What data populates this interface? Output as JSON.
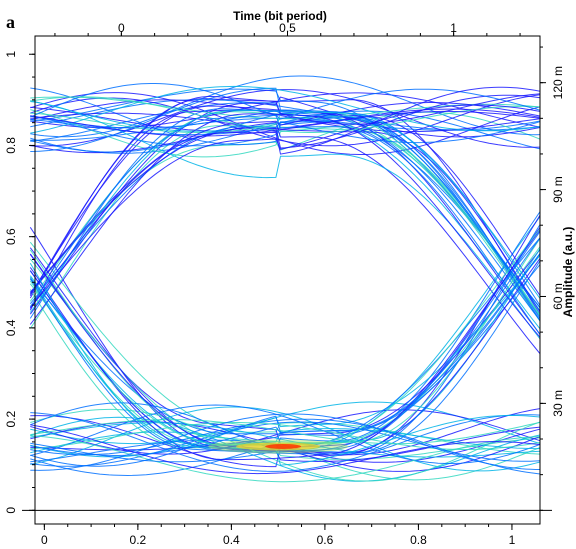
{
  "panel_label": "a",
  "chart_data": {
    "type": "line",
    "subtype": "eye-diagram",
    "title": "",
    "top_axis": {
      "label": "Time (bit period)",
      "ticks": [
        {
          "value": 0,
          "label": "0"
        },
        {
          "value": 0.5,
          "label": "0.5"
        },
        {
          "value": 1,
          "label": "1"
        }
      ],
      "range": [
        -0.26,
        1.26
      ]
    },
    "bottom_axis": {
      "label": "",
      "ticks": [
        {
          "value": 0,
          "label": "0"
        },
        {
          "value": 0.2,
          "label": "0.2"
        },
        {
          "value": 0.4,
          "label": "0.4"
        },
        {
          "value": 0.6,
          "label": "0.6"
        },
        {
          "value": 0.8,
          "label": "0.8"
        },
        {
          "value": 1,
          "label": "1"
        }
      ],
      "range": [
        -0.02,
        1.06
      ]
    },
    "left_axis": {
      "label": "",
      "ticks": [
        {
          "value": 0,
          "label": "0"
        },
        {
          "value": 0.2,
          "label": "0.2"
        },
        {
          "value": 0.4,
          "label": "0.4"
        },
        {
          "value": 0.6,
          "label": "0.6"
        },
        {
          "value": 0.8,
          "label": "0.8"
        },
        {
          "value": 1,
          "label": "1"
        }
      ],
      "range": [
        -0.03,
        1.04
      ]
    },
    "right_axis": {
      "label": "Amplitude (a.u.)",
      "ticks": [
        {
          "value": 30,
          "label": "30 m"
        },
        {
          "value": 60,
          "label": "60 m"
        },
        {
          "value": 90,
          "label": "90 m"
        },
        {
          "value": 120,
          "label": "120 m"
        }
      ],
      "range": [
        -3.85,
        133.1
      ]
    },
    "eye": {
      "low_level": 0.15,
      "high_level": 0.85,
      "crossing_level": 0.5,
      "crossings_at": [
        0,
        1
      ],
      "eye_center": 0.5,
      "eye_opening_min": 0.3,
      "eye_opening_max": 0.65
    },
    "colormap": [
      "#1a1aff",
      "#0070ff",
      "#00b4e6",
      "#33d8c0",
      "#a0e060",
      "#f0d020",
      "#ff3300"
    ],
    "hot_spot": {
      "time": 0.5,
      "amplitude": 0.14
    },
    "grid": false,
    "legend": "none"
  }
}
